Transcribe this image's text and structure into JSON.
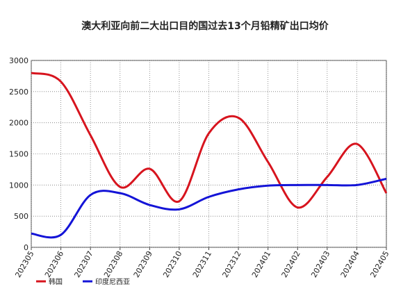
{
  "chart_data": {
    "type": "line",
    "title": "澳大利亚向前二大出口目的国过去13个月铅精矿出口均价",
    "categories": [
      "202305",
      "202306",
      "202307",
      "202308",
      "202309",
      "202310",
      "202311",
      "202312",
      "202401",
      "202402",
      "202403",
      "202404",
      "202405"
    ],
    "series": [
      {
        "name": "韩国",
        "color": "#d7141e",
        "values": [
          2800,
          2660,
          1800,
          970,
          1260,
          740,
          1830,
          2080,
          1370,
          640,
          1130,
          1660,
          870
        ]
      },
      {
        "name": "印度尼西亚",
        "color": "#1414d7",
        "values": [
          220,
          200,
          840,
          870,
          680,
          610,
          810,
          930,
          990,
          1000,
          1000,
          1000,
          1100
        ]
      }
    ],
    "ylim": [
      0,
      3000
    ],
    "yticks": [
      0,
      500,
      1000,
      1500,
      2000,
      2500,
      3000
    ],
    "grid": true,
    "legend": "bottom-left"
  }
}
